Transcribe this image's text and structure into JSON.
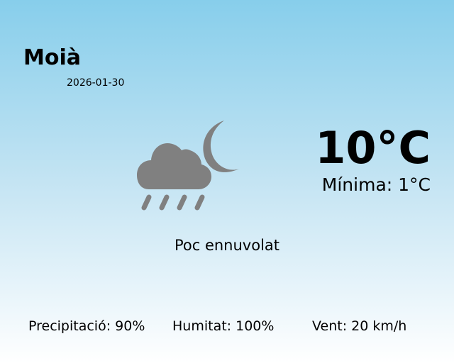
{
  "city": "Moià",
  "date": "2026-01-30",
  "temperature": "10°C",
  "minimum": "Mínima: 1°C",
  "condition": "Poc ennuvolat",
  "condition_icon": "cloud-moon-rain-icon",
  "stats": {
    "precipitation": "Precipitació: 90%",
    "humidity": "Humitat: 100%",
    "wind": "Vent: 20 km/h"
  },
  "colors": {
    "background_top": "#87ceeb",
    "background_bottom": "#ffffff",
    "icon": "#808080"
  }
}
